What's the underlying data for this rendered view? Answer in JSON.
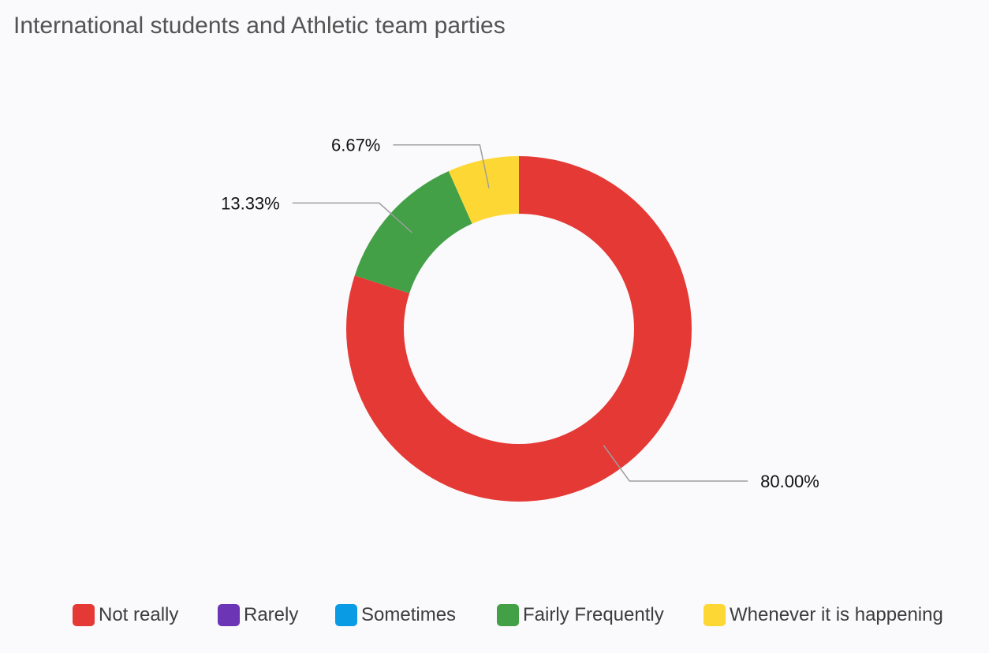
{
  "chart": {
    "title": "International students and Athletic team parties"
  },
  "chart_data": {
    "type": "pie",
    "title": "International students and Athletic team parties",
    "donut": true,
    "categories": [
      "Not really",
      "Rarely",
      "Sometimes",
      "Fairly Frequently",
      "Whenever it is happening"
    ],
    "values": [
      80.0,
      0,
      0,
      13.33,
      6.67
    ],
    "data_labels": [
      "80.00%",
      "",
      "",
      "13.33%",
      "6.67%"
    ],
    "colors": [
      "#e53935",
      "#6c35b5",
      "#0a9be5",
      "#43a047",
      "#fdd835"
    ],
    "legend_position": "bottom"
  },
  "legend": {
    "items": [
      {
        "label": "Not really",
        "color": "#e53935"
      },
      {
        "label": "Rarely",
        "color": "#6c35b5"
      },
      {
        "label": "Sometimes",
        "color": "#0a9be5"
      },
      {
        "label": "Fairly Frequently",
        "color": "#43a047"
      },
      {
        "label": "Whenever it is happening",
        "color": "#fdd835"
      }
    ]
  }
}
